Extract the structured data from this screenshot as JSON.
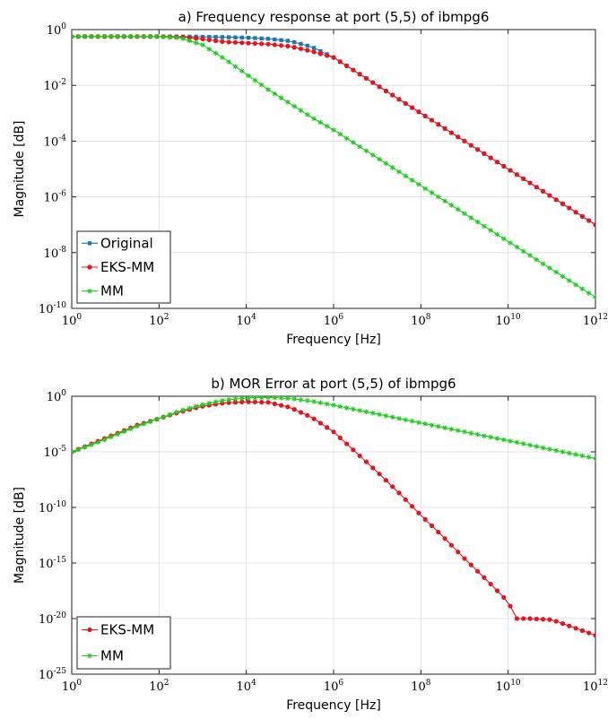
{
  "chart_data": [
    {
      "type": "line",
      "title": "a) Frequency response at port (5,5) of ibmpg6",
      "xlabel": "Frequency [Hz]",
      "ylabel": "Magnitude [dB]",
      "xscale": "log",
      "yscale": "log",
      "xlim_exp": [
        0,
        12
      ],
      "ylim_exp": [
        -10,
        0
      ],
      "x_ticks": [
        {
          "base": "10",
          "exp": "0"
        },
        {
          "base": "10",
          "exp": "2"
        },
        {
          "base": "10",
          "exp": "4"
        },
        {
          "base": "10",
          "exp": "6"
        },
        {
          "base": "10",
          "exp": "8"
        },
        {
          "base": "10",
          "exp": "10"
        },
        {
          "base": "10",
          "exp": "12"
        }
      ],
      "y_ticks": [
        {
          "base": "10",
          "exp": "0",
          "v": 0
        },
        {
          "base": "10",
          "exp": "-2",
          "v": -2
        },
        {
          "base": "10",
          "exp": "-4",
          "v": -4
        },
        {
          "base": "10",
          "exp": "-6",
          "v": -6
        },
        {
          "base": "10",
          "exp": "-8",
          "v": -8
        },
        {
          "base": "10",
          "exp": "-10",
          "v": -10
        }
      ],
      "grid": true,
      "legend_position": "bottom-left",
      "x_log10": [
        0,
        1,
        2,
        2.5,
        3,
        3.5,
        4,
        4.5,
        5,
        5.5,
        6,
        6.5,
        7,
        8,
        9,
        10,
        11,
        12
      ],
      "series": [
        {
          "name": "Original",
          "color": "#1f77b4",
          "marker": "square",
          "y_log10": [
            -0.25,
            -0.25,
            -0.25,
            -0.25,
            -0.26,
            -0.27,
            -0.29,
            -0.33,
            -0.41,
            -0.62,
            -1.0,
            -1.5,
            -2.0,
            -3.0,
            -4.0,
            -5.0,
            -6.0,
            -7.0
          ]
        },
        {
          "name": "EKS-MM",
          "color": "#e8141c",
          "marker": "dot",
          "y_log10": [
            -0.25,
            -0.25,
            -0.25,
            -0.26,
            -0.34,
            -0.44,
            -0.48,
            -0.52,
            -0.6,
            -0.78,
            -1.0,
            -1.5,
            -2.0,
            -3.0,
            -4.0,
            -5.0,
            -6.0,
            -7.0
          ]
        },
        {
          "name": "MM",
          "color": "#22cc22",
          "marker": "star",
          "y_log10": [
            -0.25,
            -0.25,
            -0.25,
            -0.3,
            -0.55,
            -1.05,
            -1.6,
            -2.15,
            -2.65,
            -3.15,
            -3.6,
            -4.1,
            -4.6,
            -5.6,
            -6.6,
            -7.6,
            -8.6,
            -9.6
          ]
        }
      ]
    },
    {
      "type": "line",
      "title": "b) MOR Error at port (5,5) of ibmpg6",
      "xlabel": "Frequency [Hz]",
      "ylabel": "Magnitude [dB]",
      "xscale": "log",
      "yscale": "log",
      "xlim_exp": [
        0,
        12
      ],
      "ylim_exp": [
        -25,
        0
      ],
      "x_ticks": [
        {
          "base": "10",
          "exp": "0"
        },
        {
          "base": "10",
          "exp": "2"
        },
        {
          "base": "10",
          "exp": "4"
        },
        {
          "base": "10",
          "exp": "6"
        },
        {
          "base": "10",
          "exp": "8"
        },
        {
          "base": "10",
          "exp": "10"
        },
        {
          "base": "10",
          "exp": "12"
        }
      ],
      "y_ticks": [
        {
          "base": "10",
          "exp": "0",
          "v": 0
        },
        {
          "base": "10",
          "exp": "-5",
          "v": -5
        },
        {
          "base": "10",
          "exp": "-10",
          "v": -10
        },
        {
          "base": "10",
          "exp": "-15",
          "v": -15
        },
        {
          "base": "10",
          "exp": "-20",
          "v": -20
        },
        {
          "base": "10",
          "exp": "-25",
          "v": -25
        }
      ],
      "grid": true,
      "legend_position": "bottom-left",
      "x_log10": [
        0,
        0.5,
        1,
        1.5,
        2,
        2.5,
        3,
        3.5,
        4,
        4.5,
        5,
        5.5,
        6,
        6.5,
        7,
        7.5,
        8,
        8.5,
        9,
        9.5,
        10,
        10.2,
        10.5,
        11,
        11.5,
        12
      ],
      "series": [
        {
          "name": "EKS-MM",
          "color": "#e8141c",
          "marker": "dot",
          "y_log10": [
            -5.0,
            -4.2,
            -3.4,
            -2.6,
            -2.0,
            -1.4,
            -0.9,
            -0.6,
            -0.5,
            -0.55,
            -1.0,
            -1.9,
            -3.2,
            -5.0,
            -6.8,
            -8.7,
            -10.7,
            -12.6,
            -14.6,
            -16.5,
            -18.5,
            -20.0,
            -20.0,
            -20.1,
            -20.8,
            -21.5
          ]
        },
        {
          "name": "MM",
          "color": "#22cc22",
          "marker": "star",
          "y_log10": [
            -5.0,
            -4.3,
            -3.5,
            -2.7,
            -2.0,
            -1.3,
            -0.75,
            -0.35,
            -0.15,
            -0.1,
            -0.2,
            -0.45,
            -0.8,
            -1.2,
            -1.6,
            -2.0,
            -2.4,
            -2.8,
            -3.2,
            -3.6,
            -4.0,
            -4.15,
            -4.4,
            -4.8,
            -5.2,
            -5.6
          ]
        }
      ]
    }
  ]
}
